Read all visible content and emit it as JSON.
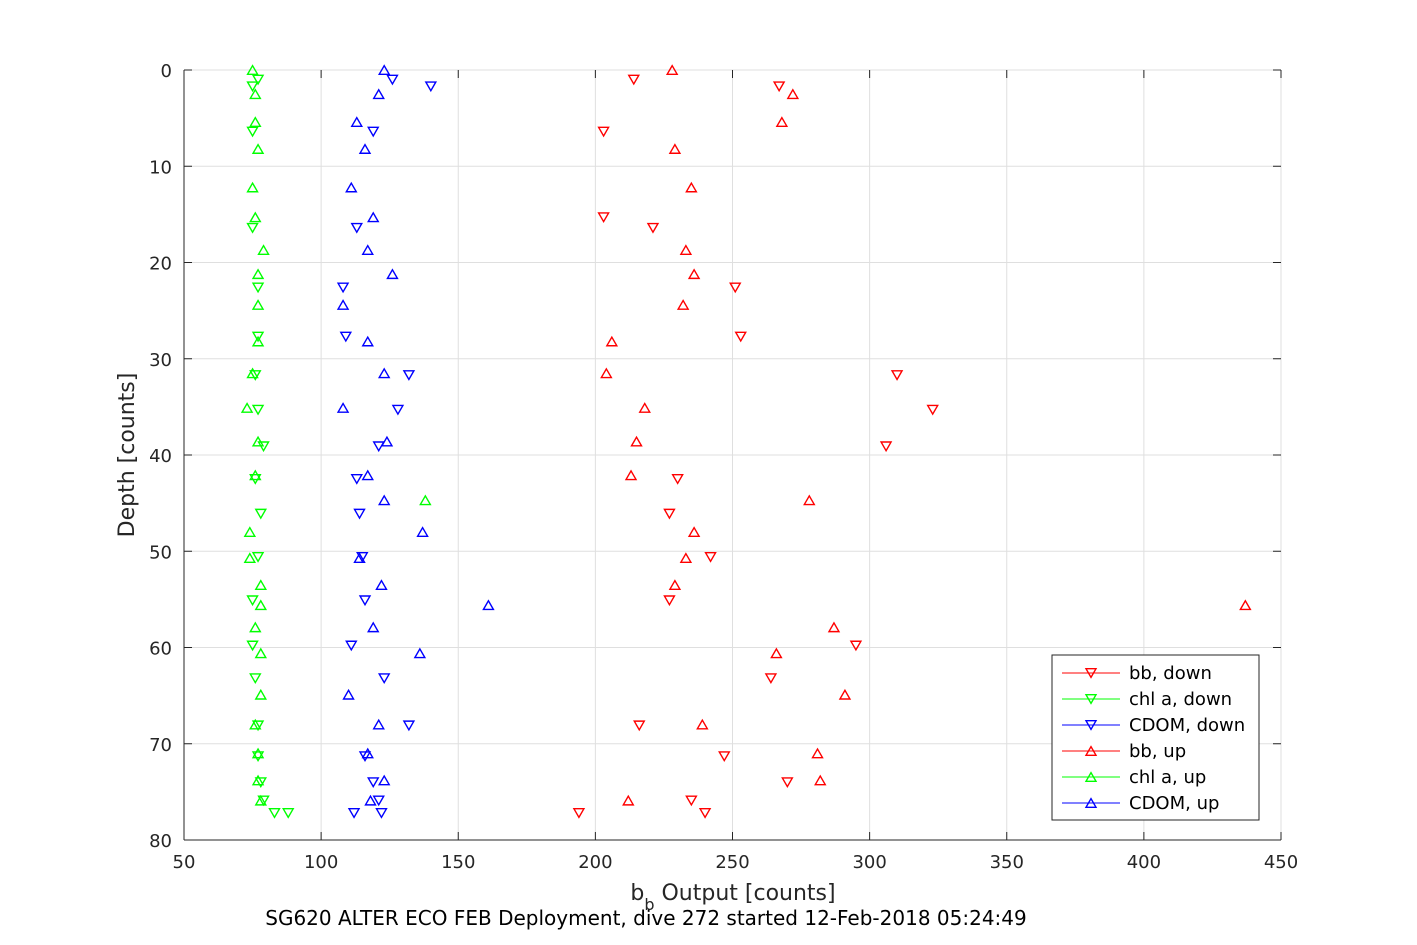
{
  "chart_data": {
    "type": "scatter",
    "xlabel_base": "b",
    "xlabel_sub": "b",
    "xlabel_rest": " Output [counts]",
    "ylabel": "Depth [counts]",
    "caption": "SG620 ALTER ECO FEB Deployment, dive 272 started 12-Feb-2018 05:24:49",
    "xlim": [
      50,
      450
    ],
    "ylim": [
      0,
      80
    ],
    "y_reversed": true,
    "grid": true,
    "legend_position": "bottom-right",
    "x_ticks": [
      "50",
      "100",
      "150",
      "200",
      "250",
      "300",
      "350",
      "400",
      "450"
    ],
    "y_ticks": [
      "0",
      "10",
      "20",
      "30",
      "40",
      "50",
      "60",
      "70",
      "80"
    ],
    "series": [
      {
        "name": "bb, down",
        "color": "#ff0000",
        "marker": "triangle-down",
        "points": [
          [
            214,
            1.0
          ],
          [
            267,
            1.7
          ],
          [
            203,
            6.4
          ],
          [
            203,
            15.3
          ],
          [
            221,
            16.4
          ],
          [
            251,
            22.6
          ],
          [
            253,
            27.7
          ],
          [
            310,
            31.7
          ],
          [
            323,
            35.3
          ],
          [
            306,
            39.1
          ],
          [
            230,
            42.5
          ],
          [
            227,
            46.1
          ],
          [
            242,
            50.6
          ],
          [
            227,
            55.1
          ],
          [
            295,
            59.8
          ],
          [
            264,
            63.2
          ],
          [
            216,
            68.1
          ],
          [
            247,
            71.3
          ],
          [
            270,
            74.0
          ],
          [
            235,
            75.9
          ],
          [
            240,
            77.2
          ],
          [
            194,
            77.2
          ]
        ]
      },
      {
        "name": "chl a, down",
        "color": "#00ff00",
        "marker": "triangle-down",
        "points": [
          [
            77,
            1.0
          ],
          [
            75,
            1.7
          ],
          [
            75,
            6.4
          ],
          [
            75,
            16.4
          ],
          [
            77,
            22.6
          ],
          [
            77,
            27.7
          ],
          [
            76,
            31.7
          ],
          [
            77,
            35.3
          ],
          [
            79,
            39.1
          ],
          [
            76,
            42.5
          ],
          [
            78,
            46.1
          ],
          [
            77,
            50.6
          ],
          [
            75,
            55.1
          ],
          [
            75,
            59.8
          ],
          [
            76,
            63.2
          ],
          [
            77,
            68.1
          ],
          [
            77,
            71.3
          ],
          [
            78,
            74.0
          ],
          [
            79,
            75.9
          ],
          [
            83,
            77.2
          ],
          [
            88,
            77.2
          ]
        ]
      },
      {
        "name": "CDOM, down",
        "color": "#0000ff",
        "marker": "triangle-down",
        "points": [
          [
            126,
            1.0
          ],
          [
            140,
            1.7
          ],
          [
            119,
            6.4
          ],
          [
            113,
            16.4
          ],
          [
            108,
            22.6
          ],
          [
            109,
            27.7
          ],
          [
            132,
            31.7
          ],
          [
            128,
            35.3
          ],
          [
            121,
            39.1
          ],
          [
            113,
            42.5
          ],
          [
            114,
            46.1
          ],
          [
            115,
            50.6
          ],
          [
            116,
            55.1
          ],
          [
            111,
            59.8
          ],
          [
            123,
            63.2
          ],
          [
            132,
            68.1
          ],
          [
            116,
            71.3
          ],
          [
            119,
            74.0
          ],
          [
            121,
            75.9
          ],
          [
            122,
            77.2
          ],
          [
            112,
            77.2
          ]
        ]
      },
      {
        "name": "bb, up",
        "color": "#ff0000",
        "marker": "triangle-up",
        "points": [
          [
            228,
            0
          ],
          [
            272,
            2.5
          ],
          [
            268,
            5.4
          ],
          [
            229,
            8.2
          ],
          [
            235,
            12.2
          ],
          [
            233,
            18.7
          ],
          [
            236,
            21.2
          ],
          [
            232,
            24.4
          ],
          [
            206,
            28.2
          ],
          [
            204,
            31.5
          ],
          [
            218,
            35.1
          ],
          [
            215,
            38.6
          ],
          [
            213,
            42.1
          ],
          [
            278,
            44.7
          ],
          [
            236,
            48.0
          ],
          [
            233,
            50.7
          ],
          [
            229,
            53.5
          ],
          [
            437,
            55.6
          ],
          [
            287,
            57.9
          ],
          [
            266,
            60.6
          ],
          [
            291,
            64.9
          ],
          [
            239,
            68.0
          ],
          [
            281,
            71.0
          ],
          [
            282,
            73.8
          ],
          [
            212,
            75.9
          ]
        ]
      },
      {
        "name": "chl a, up",
        "color": "#00ff00",
        "marker": "triangle-up",
        "points": [
          [
            75,
            0
          ],
          [
            76,
            2.5
          ],
          [
            76,
            5.4
          ],
          [
            77,
            8.2
          ],
          [
            75,
            12.2
          ],
          [
            76,
            15.3
          ],
          [
            79,
            18.7
          ],
          [
            77,
            21.2
          ],
          [
            77,
            24.4
          ],
          [
            77,
            28.2
          ],
          [
            75,
            31.5
          ],
          [
            73,
            35.1
          ],
          [
            77,
            38.6
          ],
          [
            76,
            42.1
          ],
          [
            138,
            44.7
          ],
          [
            74,
            48.0
          ],
          [
            74,
            50.7
          ],
          [
            78,
            53.5
          ],
          [
            78,
            55.6
          ],
          [
            76,
            57.9
          ],
          [
            78,
            60.6
          ],
          [
            78,
            64.9
          ],
          [
            76,
            68.0
          ],
          [
            77,
            71.0
          ],
          [
            77,
            73.8
          ],
          [
            78,
            75.9
          ]
        ]
      },
      {
        "name": "CDOM, up",
        "color": "#0000ff",
        "marker": "triangle-up",
        "points": [
          [
            123,
            0
          ],
          [
            121,
            2.5
          ],
          [
            113,
            5.4
          ],
          [
            116,
            8.2
          ],
          [
            111,
            12.2
          ],
          [
            119,
            15.3
          ],
          [
            117,
            18.7
          ],
          [
            126,
            21.2
          ],
          [
            108,
            24.4
          ],
          [
            117,
            28.2
          ],
          [
            123,
            31.5
          ],
          [
            108,
            35.1
          ],
          [
            124,
            38.6
          ],
          [
            117,
            42.1
          ],
          [
            123,
            44.7
          ],
          [
            137,
            48.0
          ],
          [
            114,
            50.7
          ],
          [
            122,
            53.5
          ],
          [
            161,
            55.6
          ],
          [
            119,
            57.9
          ],
          [
            136,
            60.6
          ],
          [
            110,
            64.9
          ],
          [
            121,
            68.0
          ],
          [
            117,
            71.0
          ],
          [
            123,
            73.8
          ],
          [
            118,
            75.9
          ]
        ]
      }
    ]
  }
}
